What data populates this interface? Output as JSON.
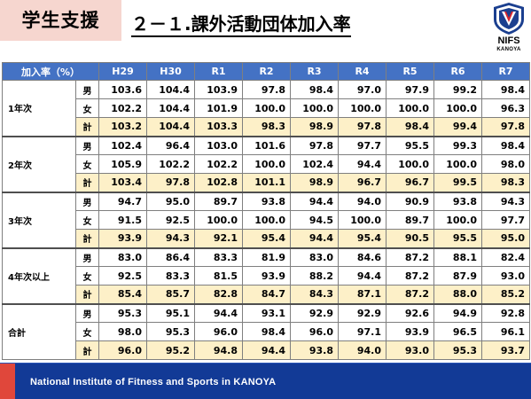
{
  "header": {
    "section_tag": "学生支援",
    "title": "２－１.課外活動団体加入率",
    "logo_text": "NIFS",
    "logo_subtext": "KANOYA"
  },
  "table": {
    "corner_label": "加入率（%）",
    "columns": [
      "H29",
      "H30",
      "R1",
      "R2",
      "R3",
      "R4",
      "R5",
      "R6",
      "R7"
    ],
    "groups": [
      {
        "label": "1年次",
        "rows": [
          {
            "sex": "男",
            "values": [
              "103.6",
              "104.4",
              "103.9",
              "97.8",
              "98.4",
              "97.0",
              "97.9",
              "99.2",
              "98.4"
            ]
          },
          {
            "sex": "女",
            "values": [
              "102.2",
              "104.4",
              "101.9",
              "100.0",
              "100.0",
              "100.0",
              "100.0",
              "100.0",
              "96.3"
            ]
          },
          {
            "sex": "計",
            "values": [
              "103.2",
              "104.4",
              "103.3",
              "98.3",
              "98.9",
              "97.8",
              "98.4",
              "99.4",
              "97.8"
            ]
          }
        ]
      },
      {
        "label": "2年次",
        "rows": [
          {
            "sex": "男",
            "values": [
              "102.4",
              "96.4",
              "103.0",
              "101.6",
              "97.8",
              "97.7",
              "95.5",
              "99.3",
              "98.4"
            ]
          },
          {
            "sex": "女",
            "values": [
              "105.9",
              "102.2",
              "102.2",
              "100.0",
              "102.4",
              "94.4",
              "100.0",
              "100.0",
              "98.0"
            ]
          },
          {
            "sex": "計",
            "values": [
              "103.4",
              "97.8",
              "102.8",
              "101.1",
              "98.9",
              "96.7",
              "96.7",
              "99.5",
              "98.3"
            ]
          }
        ]
      },
      {
        "label": "3年次",
        "rows": [
          {
            "sex": "男",
            "values": [
              "94.7",
              "95.0",
              "89.7",
              "93.8",
              "94.4",
              "94.0",
              "90.9",
              "93.8",
              "94.3"
            ]
          },
          {
            "sex": "女",
            "values": [
              "91.5",
              "92.5",
              "100.0",
              "100.0",
              "94.5",
              "100.0",
              "89.7",
              "100.0",
              "97.7"
            ]
          },
          {
            "sex": "計",
            "values": [
              "93.9",
              "94.3",
              "92.1",
              "95.4",
              "94.4",
              "95.4",
              "90.5",
              "95.5",
              "95.0"
            ]
          }
        ]
      },
      {
        "label": "4年次以上",
        "rows": [
          {
            "sex": "男",
            "values": [
              "83.0",
              "86.4",
              "83.3",
              "81.9",
              "83.0",
              "84.6",
              "87.2",
              "88.1",
              "82.4"
            ]
          },
          {
            "sex": "女",
            "values": [
              "92.5",
              "83.3",
              "81.5",
              "93.9",
              "88.2",
              "94.4",
              "87.2",
              "87.9",
              "93.0"
            ]
          },
          {
            "sex": "計",
            "values": [
              "85.4",
              "85.7",
              "82.8",
              "84.7",
              "84.3",
              "87.1",
              "87.2",
              "88.0",
              "85.2"
            ]
          }
        ]
      },
      {
        "label": "合計",
        "rows": [
          {
            "sex": "男",
            "values": [
              "95.3",
              "95.1",
              "94.4",
              "93.1",
              "92.9",
              "92.9",
              "92.6",
              "94.9",
              "92.8"
            ]
          },
          {
            "sex": "女",
            "values": [
              "98.0",
              "95.3",
              "96.0",
              "98.4",
              "96.0",
              "97.1",
              "93.9",
              "96.5",
              "96.1"
            ]
          },
          {
            "sex": "計",
            "values": [
              "96.0",
              "95.2",
              "94.8",
              "94.4",
              "93.8",
              "94.0",
              "93.0",
              "95.3",
              "93.7"
            ]
          }
        ]
      }
    ]
  },
  "footer": {
    "text": "National Institute of Fitness and Sports in KANOYA"
  },
  "colors": {
    "header_blue": "#4472c4",
    "total_row_fill": "#fdf0c8",
    "section_tag_fill": "#f6d6cf",
    "footer_blue": "#123a96",
    "footer_red": "#e0473b"
  }
}
